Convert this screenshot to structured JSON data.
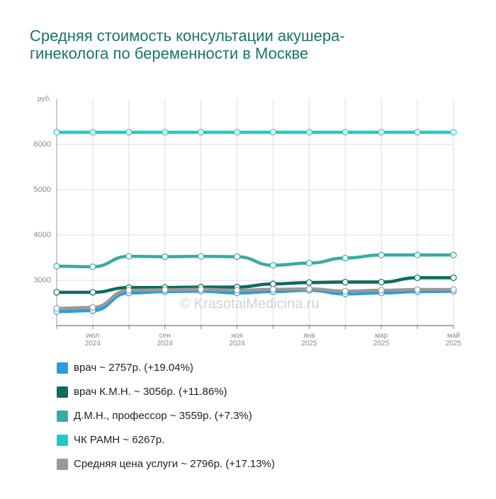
{
  "chart_data": {
    "type": "line",
    "title": "Средняя стоимость консультации акушера-гинеколога по беременности в Москве",
    "y_unit": "руб.",
    "watermark": "© KrasotaiMedicina.ru",
    "categories": [
      null,
      "июл 2024",
      null,
      "сен 2024",
      null,
      "ноя 2024",
      null,
      "янв 2025",
      null,
      "мар 2025",
      null,
      "май 2025"
    ],
    "ylim": [
      2000,
      7000
    ],
    "yticks": [
      3000,
      4000,
      5000,
      6000
    ],
    "grid": true,
    "series": [
      {
        "name": "врач ~ 2757р. (+19.04%)",
        "color": "#2b9be0",
        "values": [
          2310,
          2330,
          2720,
          2750,
          2760,
          2720,
          2750,
          2780,
          2700,
          2720,
          2750,
          2757
        ]
      },
      {
        "name": "врач К.М.Н. ~ 3056р. (+11.86%)",
        "color": "#0e6b5f",
        "values": [
          2735,
          2735,
          2840,
          2840,
          2850,
          2850,
          2920,
          2950,
          2960,
          2960,
          3056,
          3056
        ]
      },
      {
        "name": "Д.М.Н., профессор ~ 3559р. (+7.3%)",
        "color": "#38aca4",
        "values": [
          3310,
          3300,
          3530,
          3520,
          3530,
          3520,
          3330,
          3380,
          3490,
          3559,
          3559,
          3559
        ]
      },
      {
        "name": "ЧК РАМН ~ 6267р.",
        "color": "#1ccbc4",
        "values": [
          6267,
          6267,
          6267,
          6267,
          6267,
          6267,
          6267,
          6267,
          6267,
          6267,
          6267,
          6267
        ]
      },
      {
        "name": "Средняя цена услуги ~ 2796р. (+17.13%)",
        "color": "#999999",
        "values": [
          2380,
          2400,
          2780,
          2790,
          2800,
          2780,
          2800,
          2810,
          2760,
          2780,
          2796,
          2796
        ]
      }
    ]
  }
}
